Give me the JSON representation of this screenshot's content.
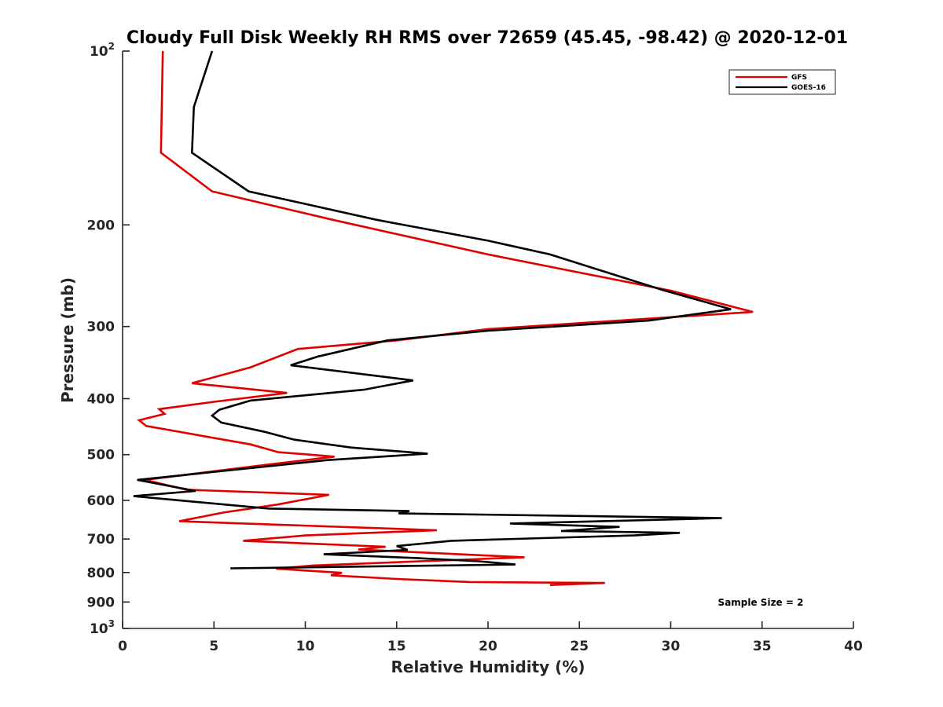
{
  "chart_data": {
    "type": "line",
    "title": "Cloudy Full Disk Weekly RH RMS over 72659 (45.45, -98.42) @ 2020-12-01",
    "xlabel": "Relative Humidity (%)",
    "ylabel": "Pressure (mb)",
    "xlim": [
      0,
      40
    ],
    "ylim": [
      100,
      1000
    ],
    "y_scale": "log",
    "y_reversed": true,
    "x_ticks": [
      "0",
      "5",
      "10",
      "15",
      "20",
      "25",
      "30",
      "35",
      "40"
    ],
    "y_tick_labels": [
      {
        "value": 100,
        "label": "10",
        "sup": "2"
      },
      {
        "value": 200,
        "label": "200",
        "sup": ""
      },
      {
        "value": 300,
        "label": "300",
        "sup": ""
      },
      {
        "value": 400,
        "label": "400",
        "sup": ""
      },
      {
        "value": 500,
        "label": "500",
        "sup": ""
      },
      {
        "value": 600,
        "label": "600",
        "sup": ""
      },
      {
        "value": 700,
        "label": "700",
        "sup": ""
      },
      {
        "value": 800,
        "label": "800",
        "sup": ""
      },
      {
        "value": 900,
        "label": "900",
        "sup": ""
      },
      {
        "value": 1000,
        "label": "10",
        "sup": "3"
      }
    ],
    "grid": false,
    "legend_position": "top-right",
    "annotation": "Sample Size = 2",
    "series": [
      {
        "name": "GFS",
        "color": "#e00000",
        "points": [
          [
            2.2,
            100
          ],
          [
            2.1,
            150
          ],
          [
            4.9,
            175
          ],
          [
            11.5,
            196
          ],
          [
            20,
            225
          ],
          [
            30,
            260
          ],
          [
            34.5,
            283
          ],
          [
            30,
            289
          ],
          [
            20,
            303
          ],
          [
            15,
            317
          ],
          [
            9.6,
            328
          ],
          [
            7,
            353
          ],
          [
            3.8,
            376
          ],
          [
            9,
            391
          ],
          [
            5,
            405
          ],
          [
            2.0,
            417
          ],
          [
            2.3,
            425
          ],
          [
            0.9,
            436
          ],
          [
            1.3,
            446
          ],
          [
            7,
            480
          ],
          [
            8.5,
            495
          ],
          [
            11.6,
            504
          ],
          [
            8,
            520
          ],
          [
            1.2,
            553
          ],
          [
            3.5,
            575
          ],
          [
            11.3,
            587
          ],
          [
            8.5,
            610
          ],
          [
            5.5,
            630
          ],
          [
            3.1,
            652
          ],
          [
            17.2,
            676
          ],
          [
            10,
            690
          ],
          [
            6.6,
            705
          ],
          [
            14.4,
            722
          ],
          [
            12.9,
            730
          ],
          [
            22,
            753
          ],
          [
            15,
            768
          ],
          [
            10.4,
            778
          ],
          [
            8.4,
            788
          ],
          [
            12.0,
            801
          ],
          [
            11.4,
            809
          ],
          [
            15,
            821
          ],
          [
            19,
            831
          ],
          [
            26.4,
            834
          ],
          [
            23.4,
            841
          ]
        ]
      },
      {
        "name": "GOES-16",
        "color": "#000000",
        "points": [
          [
            4.9,
            100
          ],
          [
            3.9,
            125
          ],
          [
            3.8,
            150
          ],
          [
            6.9,
            175
          ],
          [
            13.9,
            196
          ],
          [
            20,
            213
          ],
          [
            23.4,
            225
          ],
          [
            29.5,
            259
          ],
          [
            33.3,
            280
          ],
          [
            28.8,
            293
          ],
          [
            20,
            305
          ],
          [
            14.5,
            317
          ],
          [
            10.7,
            338
          ],
          [
            9.2,
            350
          ],
          [
            15.9,
            372
          ],
          [
            13.2,
            386
          ],
          [
            7.0,
            403
          ],
          [
            5.3,
            418
          ],
          [
            4.9,
            428
          ],
          [
            5.4,
            440
          ],
          [
            7.7,
            456
          ],
          [
            9.4,
            471
          ],
          [
            12.5,
            486
          ],
          [
            16.7,
            498
          ],
          [
            11.2,
            511
          ],
          [
            0.8,
            553
          ],
          [
            4.0,
            578
          ],
          [
            0.6,
            590
          ],
          [
            8.0,
            620
          ],
          [
            15.7,
            626
          ],
          [
            15.1,
            632
          ],
          [
            32.8,
            644
          ],
          [
            28,
            650
          ],
          [
            21.2,
            658
          ],
          [
            27.2,
            667
          ],
          [
            24.0,
            678
          ],
          [
            30.5,
            683
          ],
          [
            28,
            690
          ],
          [
            18,
            705
          ],
          [
            15,
            720
          ],
          [
            15.6,
            731
          ],
          [
            11.0,
            744
          ],
          [
            16,
            755
          ],
          [
            19.5,
            765
          ],
          [
            21.5,
            775
          ],
          [
            5.9,
            787
          ]
        ]
      }
    ]
  }
}
